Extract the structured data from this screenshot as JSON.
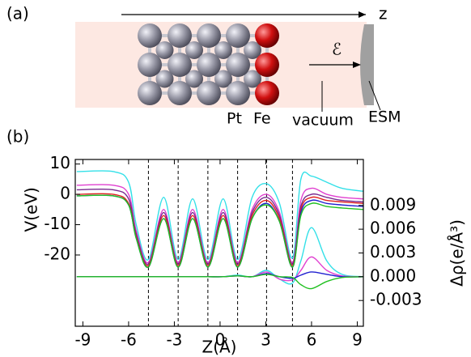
{
  "panel_a": {
    "label": "(a)",
    "axis_label": "z",
    "field_label": "ℰ",
    "pt_label": "Pt",
    "fe_label": "Fe",
    "vacuum_label": "vacuum",
    "esm_label": "ESM"
  },
  "panel_b_label": "(b)",
  "chart_data": {
    "type": "line",
    "xlabel": "Z(Å)",
    "ylabel": "V(eV)",
    "y2label": "Δρ(e/Å³)",
    "x": [
      -9.4,
      -7,
      -6,
      -5.5,
      -4.7,
      -3.7,
      -2.75,
      -1.8,
      -0.8,
      0.2,
      1.15,
      2.1,
      3.05,
      3.9,
      4.75,
      5.3,
      6,
      7,
      8,
      9.4
    ],
    "xlim": [
      -9.5,
      9.4
    ],
    "xticks": [
      -9,
      -6,
      -3,
      0,
      3,
      6,
      9
    ],
    "ylim": [
      -43.5,
      11.5
    ],
    "yticks": [
      10,
      0,
      -10,
      -20
    ],
    "y2lim": [
      -0.00625,
      0.0148
    ],
    "y2ticks": [
      0.009,
      0.006,
      0.003,
      {
        "value": 0,
        "label": "0.000"
      },
      -0.003
    ],
    "vlines": [
      -4.7,
      -2.75,
      -0.8,
      1.15,
      3.05,
      4.75
    ],
    "series": [
      {
        "color": "#33e0e8",
        "values": [
          7.5,
          7.5,
          4,
          -10,
          -21.5,
          -1,
          -21.5,
          -1.5,
          -21.5,
          -1.5,
          -21.5,
          -1,
          3.5,
          -3,
          -21,
          5,
          6,
          4,
          2,
          1
        ]
      },
      {
        "color": "#e040d0",
        "values": [
          3,
          3,
          0,
          -12,
          -22.5,
          -5,
          -22.5,
          -5,
          -22.5,
          -5,
          -22.5,
          -5,
          0,
          -6,
          -22.5,
          -2,
          2,
          0,
          -1,
          -1.5
        ]
      },
      {
        "color": "#7a2a90",
        "values": [
          1.5,
          1.5,
          -1.5,
          -13,
          -23,
          -6,
          -23,
          -6,
          -23,
          -6,
          -23,
          -6,
          -1,
          -7,
          -23,
          -4,
          0,
          -1,
          -2,
          -2.5
        ]
      },
      {
        "color": "#e02020",
        "values": [
          0,
          0,
          -3,
          -14,
          -23.5,
          -7,
          -23.5,
          -7,
          -23.5,
          -7,
          -23.5,
          -7,
          -2,
          -8,
          -23.5,
          -5,
          -1,
          -2,
          -2.5,
          -3
        ]
      },
      {
        "color": "#2020d0",
        "values": [
          -0.5,
          -0.5,
          -3.5,
          -14.5,
          -24,
          -8,
          -24,
          -8,
          -24,
          -8,
          -24,
          -8,
          -3,
          -9,
          -24,
          -6,
          -2,
          -3,
          -3.5,
          -4
        ]
      },
      {
        "color": "#20c020",
        "values": [
          -0.5,
          -0.5,
          -3.5,
          -14.5,
          -24,
          -8,
          -24,
          -8,
          -24,
          -8,
          -24,
          -8,
          -3.5,
          -9,
          -24,
          -7,
          -3,
          -4,
          -4.5,
          -5
        ]
      },
      {
        "color": "#33e0e8",
        "axis": "y2",
        "values": [
          0,
          0,
          0,
          0,
          0,
          0,
          0,
          0,
          0,
          0,
          0.0002,
          0,
          0.0008,
          -0.0003,
          -0.0008,
          0.002,
          0.0062,
          0.002,
          0.0003,
          0
        ]
      },
      {
        "color": "#e040d0",
        "axis": "y2",
        "values": [
          0,
          0,
          0,
          0,
          0,
          0,
          0,
          0,
          0,
          0,
          0.0001,
          0,
          0.0006,
          -0.0003,
          -0.0004,
          0.0008,
          0.0025,
          0.0008,
          0.0001,
          0
        ]
      },
      {
        "color": "#2020d0",
        "axis": "y2",
        "values": [
          0,
          0,
          0,
          0,
          0,
          0,
          0,
          0,
          0,
          0,
          0.0001,
          0,
          0.0004,
          0,
          -0.0002,
          0.0002,
          0.0006,
          0.0003,
          0,
          0
        ]
      },
      {
        "color": "#20c020",
        "axis": "y2",
        "values": [
          0,
          0,
          0,
          0,
          0,
          0,
          0,
          0,
          0,
          0,
          0.0001,
          0,
          0.0003,
          0,
          -0.0001,
          -0.001,
          -0.0015,
          -0.0006,
          -0.0001,
          0
        ]
      }
    ]
  }
}
